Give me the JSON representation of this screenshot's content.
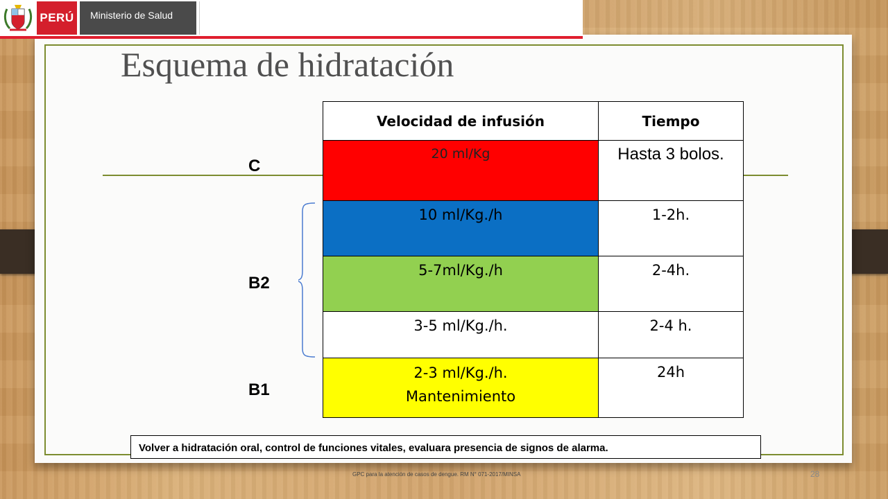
{
  "header": {
    "country": "PERÚ",
    "ministry": "Ministerio de Salud"
  },
  "slide": {
    "title": "Esquema de hidratación",
    "labels": {
      "c": "C",
      "b2": "B2",
      "b1": "B1"
    },
    "table": {
      "headers": [
        "Velocidad de infusión",
        "Tiempo"
      ],
      "rows": [
        {
          "rate": "20 ml/Kg",
          "time": "Hasta 3 bolos.",
          "color": "#ff0000"
        },
        {
          "rate": "10 ml/Kg./h",
          "time": "1-2h.",
          "color": "#0b6fc4"
        },
        {
          "rate": "5-7ml/Kg./h",
          "time": "2-4h.",
          "color": "#92d050"
        },
        {
          "rate": "3-5 ml/Kg./h.",
          "time": "2-4 h.",
          "color": "#ffffff"
        },
        {
          "rate_line1": "2-3  ml/Kg./h.",
          "rate_line2": "Mantenimiento",
          "time": "24h",
          "color": "#ffff00"
        }
      ]
    },
    "note": "Volver a hidratación oral, control de funciones vitales, evaluara presencia de signos de alarma.",
    "footer": "GPC para la atención de casos de dengue. RM N° 071-2017/MINSA",
    "page_number": "28"
  },
  "colors": {
    "frame": "#7c8c2f",
    "header_red": "#d41f2c",
    "brace": "#4a7bd0"
  }
}
